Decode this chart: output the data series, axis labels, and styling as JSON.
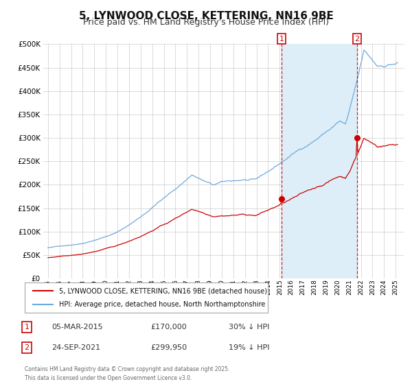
{
  "title": "5, LYNWOOD CLOSE, KETTERING, NN16 9BE",
  "subtitle": "Price paid vs. HM Land Registry's House Price Index (HPI)",
  "legend_line1": "5, LYNWOOD CLOSE, KETTERING, NN16 9BE (detached house)",
  "legend_line2": "HPI: Average price, detached house, North Northamptonshire",
  "point1_date": "05-MAR-2015",
  "point1_price": 170000,
  "point1_price_str": "£170,000",
  "point1_pct": "30% ↓ HPI",
  "point2_date": "24-SEP-2021",
  "point2_price": 299950,
  "point2_price_str": "£299,950",
  "point2_pct": "19% ↓ HPI",
  "footer": "Contains HM Land Registry data © Crown copyright and database right 2025.\nThis data is licensed under the Open Government Licence v3.0.",
  "hpi_color": "#6fa8dc",
  "price_color": "#cc0000",
  "vline_color": "#cc0000",
  "background_color": "#ffffff",
  "plot_bg_color": "#ffffff",
  "span_color": "#ddeef8",
  "grid_color": "#cccccc",
  "ylim": [
    0,
    500000
  ],
  "yticks": [
    0,
    50000,
    100000,
    150000,
    200000,
    250000,
    300000,
    350000,
    400000,
    450000,
    500000
  ],
  "title_fontsize": 11,
  "subtitle_fontsize": 9
}
